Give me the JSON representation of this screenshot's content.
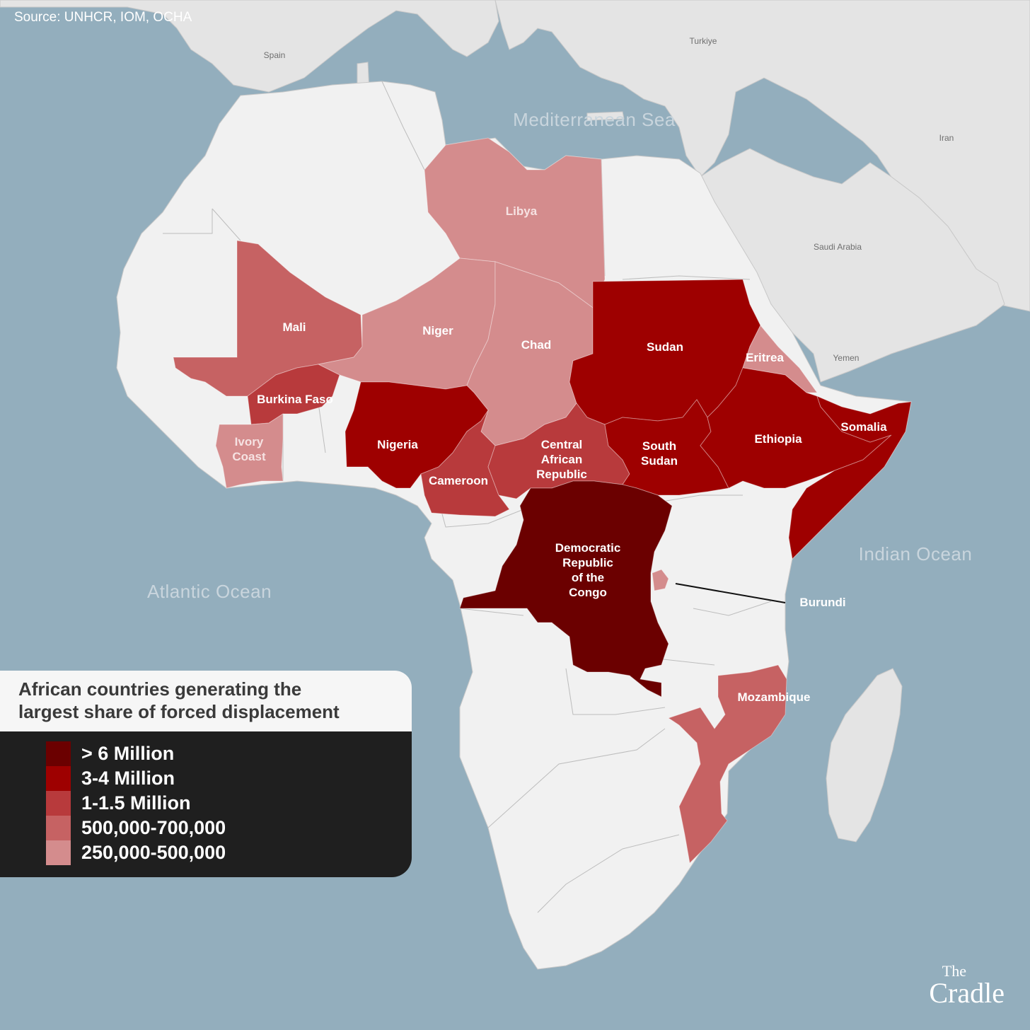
{
  "source": "Source: UNHCR, IOM, OCHA",
  "legend": {
    "title_line1": "African countries generating the",
    "title_line2": "largest share of forced displacement",
    "items": [
      {
        "label": "> 6 Million",
        "color": "#6b0000"
      },
      {
        "label": "3-4 Million",
        "color": "#9e0000"
      },
      {
        "label": "1-1.5 Million",
        "color": "#b83a3c"
      },
      {
        "label": "500,000-700,000",
        "color": "#c66263"
      },
      {
        "label": "250,000-500,000",
        "color": "#d48c8d"
      }
    ]
  },
  "countries": {
    "libya": {
      "label": "Libya",
      "category": "250,000-500,000",
      "color": "#d48c8d"
    },
    "mali": {
      "label": "Mali",
      "category": "500,000-700,000",
      "color": "#c66263"
    },
    "niger": {
      "label": "Niger",
      "category": "250,000-500,000",
      "color": "#d48c8d"
    },
    "chad": {
      "label": "Chad",
      "category": "250,000-500,000",
      "color": "#d48c8d"
    },
    "sudan": {
      "label": "Sudan",
      "category": "3-4 Million",
      "color": "#9e0000"
    },
    "eritrea": {
      "label": "Eritrea",
      "category": "250,000-500,000",
      "color": "#d48c8d"
    },
    "burkina_faso": {
      "label": "Burkina Faso",
      "category": "1-1.5 Million",
      "color": "#b83a3c"
    },
    "ivory_coast": {
      "label_line1": "Ivory",
      "label_line2": "Coast",
      "category": "250,000-500,000",
      "color": "#d48c8d"
    },
    "nigeria": {
      "label": "Nigeria",
      "category": "3-4 Million",
      "color": "#9e0000"
    },
    "cameroon": {
      "label": "Cameroon",
      "category": "1-1.5 Million",
      "color": "#b83a3c"
    },
    "car": {
      "label_line1": "Central",
      "label_line2": "African",
      "label_line3": "Republic",
      "category": "1-1.5 Million",
      "color": "#b83a3c"
    },
    "south_sudan": {
      "label_line1": "South",
      "label_line2": "Sudan",
      "category": "3-4 Million",
      "color": "#9e0000"
    },
    "ethiopia": {
      "label": "Ethiopia",
      "category": "3-4 Million",
      "color": "#9e0000"
    },
    "somalia": {
      "label": "Somalia",
      "category": "3-4 Million",
      "color": "#9e0000"
    },
    "drc": {
      "label_line1": "Democratic",
      "label_line2": "Republic",
      "label_line3": "of the",
      "label_line4": "Congo",
      "category": "> 6 Million",
      "color": "#6b0000"
    },
    "burundi": {
      "label": "Burundi",
      "category": "250,000-500,000",
      "color": "#d48c8d"
    },
    "mozambique": {
      "label": "Mozambique",
      "category": "500,000-700,000",
      "color": "#c66263"
    }
  },
  "seas": {
    "mediterranean": "Mediterranean Sea",
    "atlantic": "Atlantic Ocean",
    "indian": "Indian Ocean"
  },
  "neighbors": {
    "spain": "Spain",
    "turkiye": "Turkiye",
    "iran": "Iran",
    "saudi_arabia": "Saudi Arabia",
    "yemen": "Yemen"
  },
  "logo": {
    "line1": "The",
    "line2": "Cradle"
  },
  "colors": {
    "ocean": "#93aebd",
    "land": "#e4e4e4",
    "africa": "#f1f1f1"
  }
}
